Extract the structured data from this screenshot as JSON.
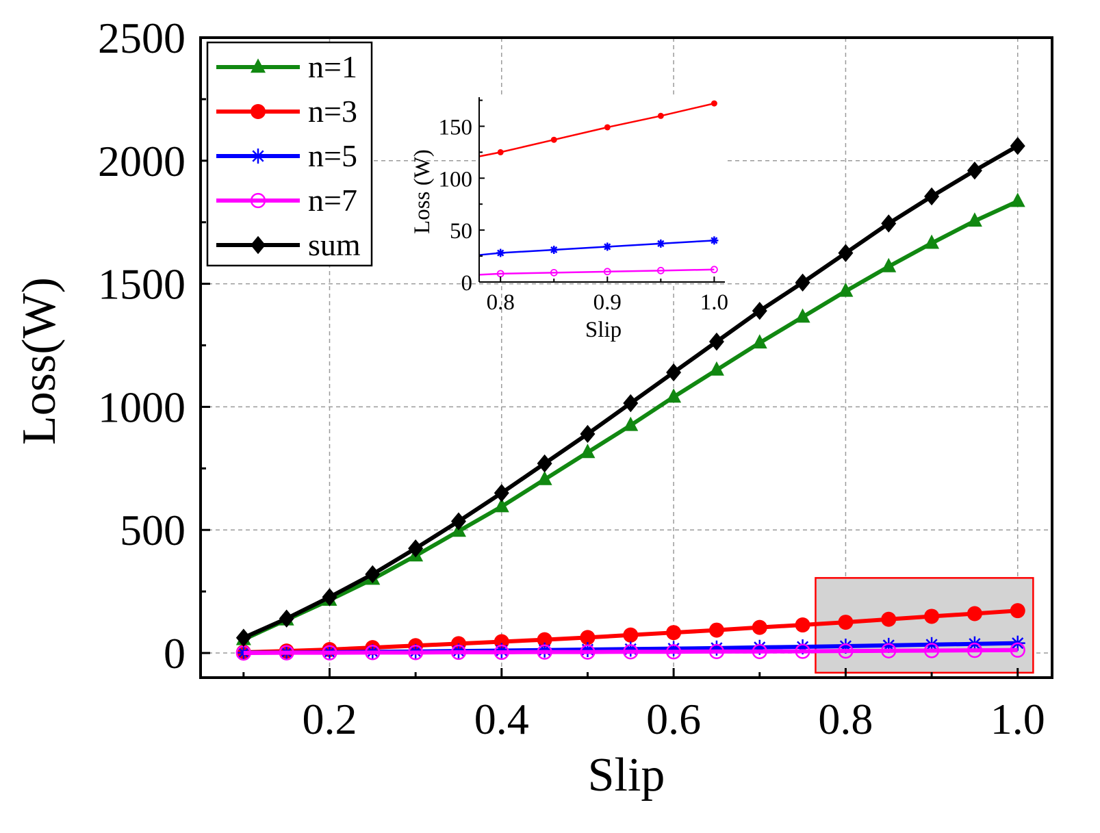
{
  "chart_data": [
    {
      "type": "line",
      "title": "",
      "xlabel": "Slip",
      "ylabel": "Loss(W)",
      "xlim": [
        0.05,
        1.04
      ],
      "ylim": [
        -100,
        2500
      ],
      "xticks": [
        "0.2",
        "0.4",
        "0.6",
        "0.8",
        "1.0"
      ],
      "yticks": [
        "0",
        "500",
        "1000",
        "1500",
        "2000",
        "2500"
      ],
      "grid": true,
      "legend_position": "top-left",
      "x": [
        0.1,
        0.15,
        0.2,
        0.25,
        0.3,
        0.35,
        0.4,
        0.45,
        0.5,
        0.55,
        0.6,
        0.65,
        0.7,
        0.75,
        0.8,
        0.85,
        0.9,
        0.95,
        1.0
      ],
      "series": [
        {
          "name": "n=1",
          "color": "#118811",
          "marker": "triangle",
          "values": [
            55,
            135,
            215,
            300,
            395,
            495,
            595,
            705,
            815,
            925,
            1040,
            1150,
            1260,
            1365,
            1470,
            1570,
            1665,
            1755,
            1835
          ]
        },
        {
          "name": "n=3",
          "color": "#ff0000",
          "marker": "circle",
          "values": [
            3,
            8,
            14,
            22,
            30,
            38,
            46,
            54,
            63,
            73,
            83,
            93,
            104,
            114,
            125,
            137,
            149,
            160,
            172
          ]
        },
        {
          "name": "n=5",
          "color": "#0000ff",
          "marker": "asterisk",
          "values": [
            1,
            2,
            3,
            5,
            6,
            8,
            10,
            12,
            14,
            16,
            18,
            20,
            23,
            25,
            28,
            31,
            34,
            37,
            40
          ]
        },
        {
          "name": "n=7",
          "color": "#ff00ff",
          "marker": "open-circle",
          "values": [
            0,
            1,
            1,
            2,
            2,
            3,
            3,
            4,
            4,
            5,
            5,
            6,
            6,
            7,
            8,
            9,
            10,
            11,
            12
          ]
        },
        {
          "name": "sum",
          "color": "#000000",
          "marker": "diamond",
          "values": [
            62,
            140,
            227,
            320,
            425,
            535,
            650,
            770,
            890,
            1015,
            1140,
            1265,
            1390,
            1505,
            1625,
            1745,
            1855,
            1960,
            2060
          ]
        }
      ],
      "annotations": [
        "highlight box over slip 0.8 to 1.0 (zoomed region shown in inset)"
      ]
    },
    {
      "type": "line",
      "title": "",
      "xlabel": "Slip",
      "ylabel": "Loss (W)",
      "xlim": [
        0.78,
        1.01
      ],
      "ylim": [
        0,
        178
      ],
      "xticks": [
        "0.8",
        "0.9",
        "1.0"
      ],
      "yticks": [
        "0",
        "50",
        "100",
        "150"
      ],
      "grid": false,
      "x": [
        0.8,
        0.85,
        0.9,
        0.95,
        1.0
      ],
      "line_start": {
        "x": 0.78,
        "n3": 121,
        "n5": 26,
        "n7": 7
      },
      "series": [
        {
          "name": "n=3",
          "color": "#ff0000",
          "values": [
            125,
            137,
            149,
            160,
            172
          ]
        },
        {
          "name": "n=5",
          "color": "#0000ff",
          "values": [
            28,
            31,
            34,
            37,
            40
          ]
        },
        {
          "name": "n=7",
          "color": "#ff00ff",
          "values": [
            8,
            9,
            10,
            11,
            12
          ]
        }
      ]
    }
  ]
}
